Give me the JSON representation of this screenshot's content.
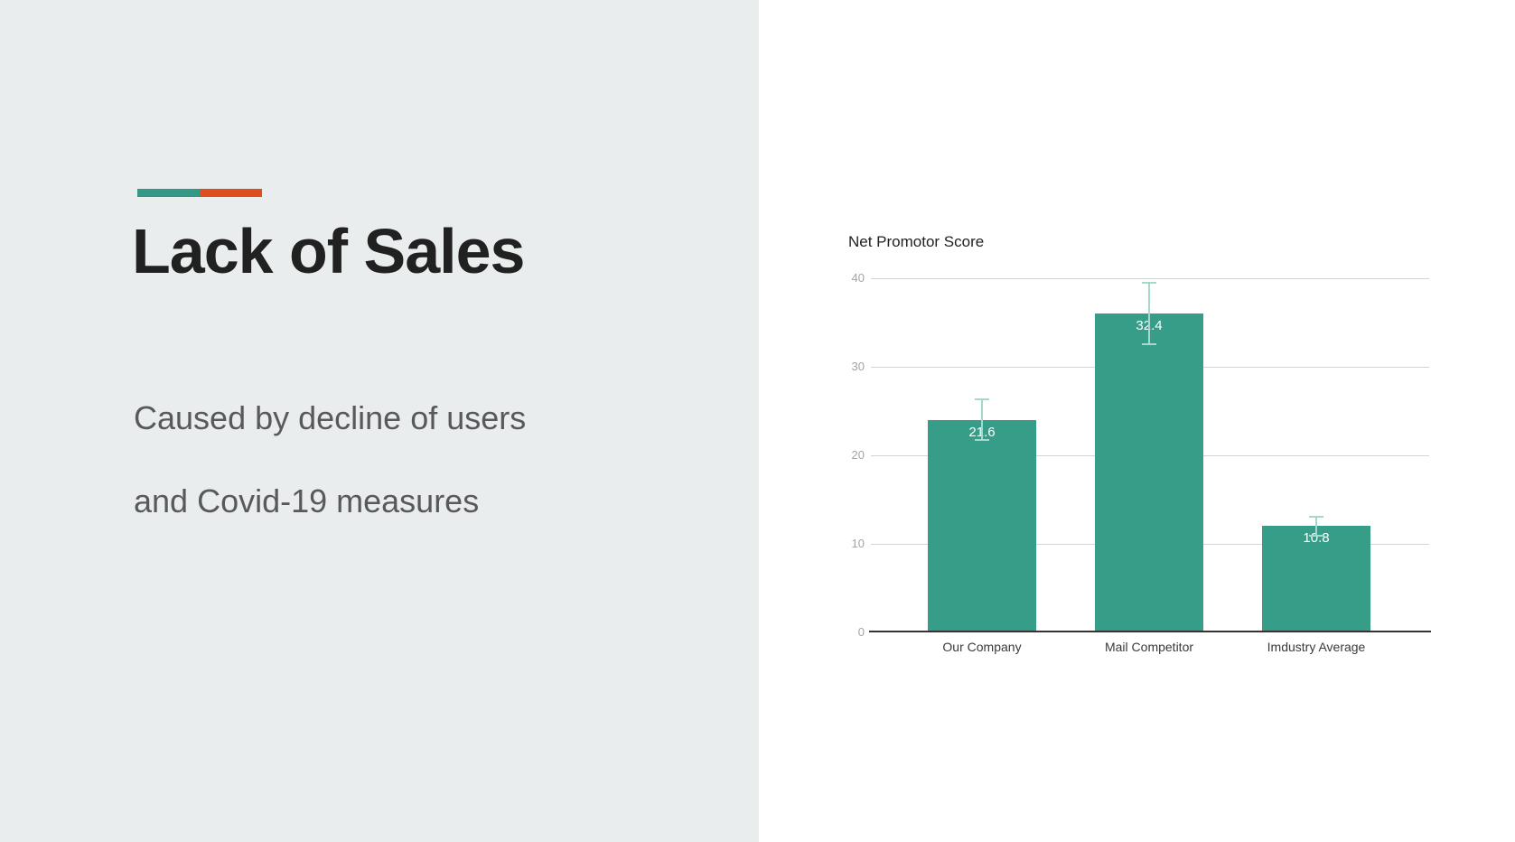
{
  "slide": {
    "title": "Lack of Sales",
    "subtitle_line1": "Caused by decline of users",
    "subtitle_line2": "and Covid-19 measures",
    "accent_colors": {
      "teal": "#339987",
      "orange": "#df4e1d"
    },
    "left_panel_bg": "#e9edee",
    "title_color": "#212121",
    "subtitle_color": "#595959"
  },
  "chart_data": {
    "type": "bar",
    "title": "Net Promotor Score",
    "categories": [
      "Our Company",
      "Mail Competitor",
      "Imdustry Average"
    ],
    "series": [
      {
        "name": "Net Promotor Score",
        "values": [
          24,
          36,
          12
        ]
      }
    ],
    "data_labels": [
      "21.6",
      "32.4",
      "10.8"
    ],
    "error_bars": {
      "type": "percent",
      "value": 10
    },
    "xlabel": "",
    "ylabel": "",
    "ylim": [
      0,
      40
    ],
    "yticks": [
      0,
      10,
      20,
      30,
      40
    ],
    "grid": true,
    "legend": "none",
    "bar_color": "#359d88",
    "error_bar_color": "#a6d8ce",
    "gridline_color": "#d4d4d4",
    "axis_line_color": "#333333"
  }
}
